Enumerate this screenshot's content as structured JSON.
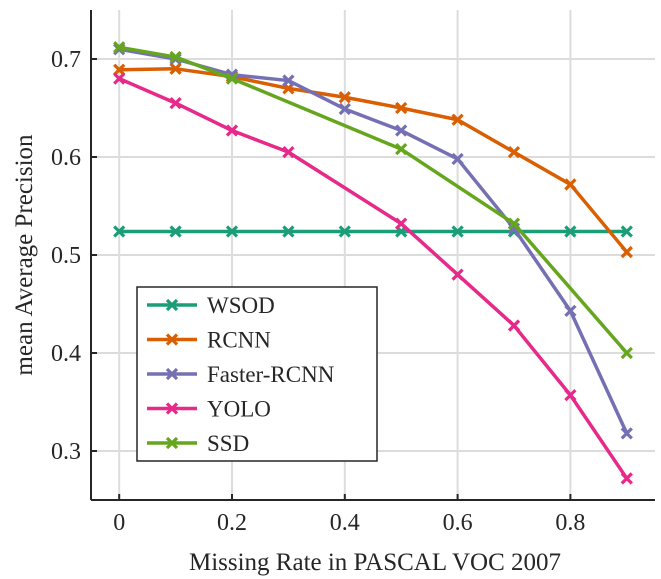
{
  "chart_data": {
    "type": "line",
    "title": "",
    "xlabel": "Missing Rate in PASCAL VOC 2007",
    "ylabel": "mean Average Precision",
    "xlim": [
      -0.05,
      0.95
    ],
    "ylim": [
      0.25,
      0.75
    ],
    "xticks": [
      0,
      0.2,
      0.4,
      0.6,
      0.8
    ],
    "xtick_labels": [
      "0",
      "0.2",
      "0.4",
      "0.6",
      "0.8"
    ],
    "yticks": [
      0.3,
      0.4,
      0.5,
      0.6,
      0.7
    ],
    "ytick_labels": [
      "0.3",
      "0.4",
      "0.5",
      "0.6",
      "0.7"
    ],
    "grid": true,
    "legend_position": "bottom-left",
    "marker": "x",
    "series": [
      {
        "name": "WSOD",
        "color": "#1b9e77",
        "x": [
          0,
          0.1,
          0.2,
          0.3,
          0.4,
          0.5,
          0.6,
          0.7,
          0.8,
          0.9
        ],
        "y": [
          0.524,
          0.524,
          0.524,
          0.524,
          0.524,
          0.524,
          0.524,
          0.524,
          0.524,
          0.524
        ]
      },
      {
        "name": "RCNN",
        "color": "#d95f02",
        "x": [
          0,
          0.1,
          0.2,
          0.3,
          0.4,
          0.5,
          0.6,
          0.7,
          0.8,
          0.9
        ],
        "y": [
          0.689,
          0.69,
          0.682,
          0.67,
          0.661,
          0.65,
          0.638,
          0.605,
          0.572,
          0.503
        ]
      },
      {
        "name": "Faster-RCNN",
        "color": "#7570b3",
        "x": [
          0,
          0.1,
          0.2,
          0.3,
          0.4,
          0.5,
          0.6,
          0.7,
          0.8,
          0.9
        ],
        "y": [
          0.71,
          0.7,
          0.684,
          0.678,
          0.649,
          0.627,
          0.598,
          0.527,
          0.443,
          0.318
        ]
      },
      {
        "name": "YOLO",
        "color": "#e7298a",
        "x": [
          0,
          0.1,
          0.2,
          0.3,
          0.5,
          0.6,
          0.7,
          0.8,
          0.9
        ],
        "y": [
          0.68,
          0.655,
          0.627,
          0.605,
          0.532,
          0.48,
          0.428,
          0.357,
          0.272
        ]
      },
      {
        "name": "SSD",
        "color": "#66a61e",
        "x": [
          0,
          0.1,
          0.2,
          0.5,
          0.7,
          0.9
        ],
        "y": [
          0.712,
          0.702,
          0.68,
          0.608,
          0.532,
          0.4
        ]
      }
    ]
  }
}
